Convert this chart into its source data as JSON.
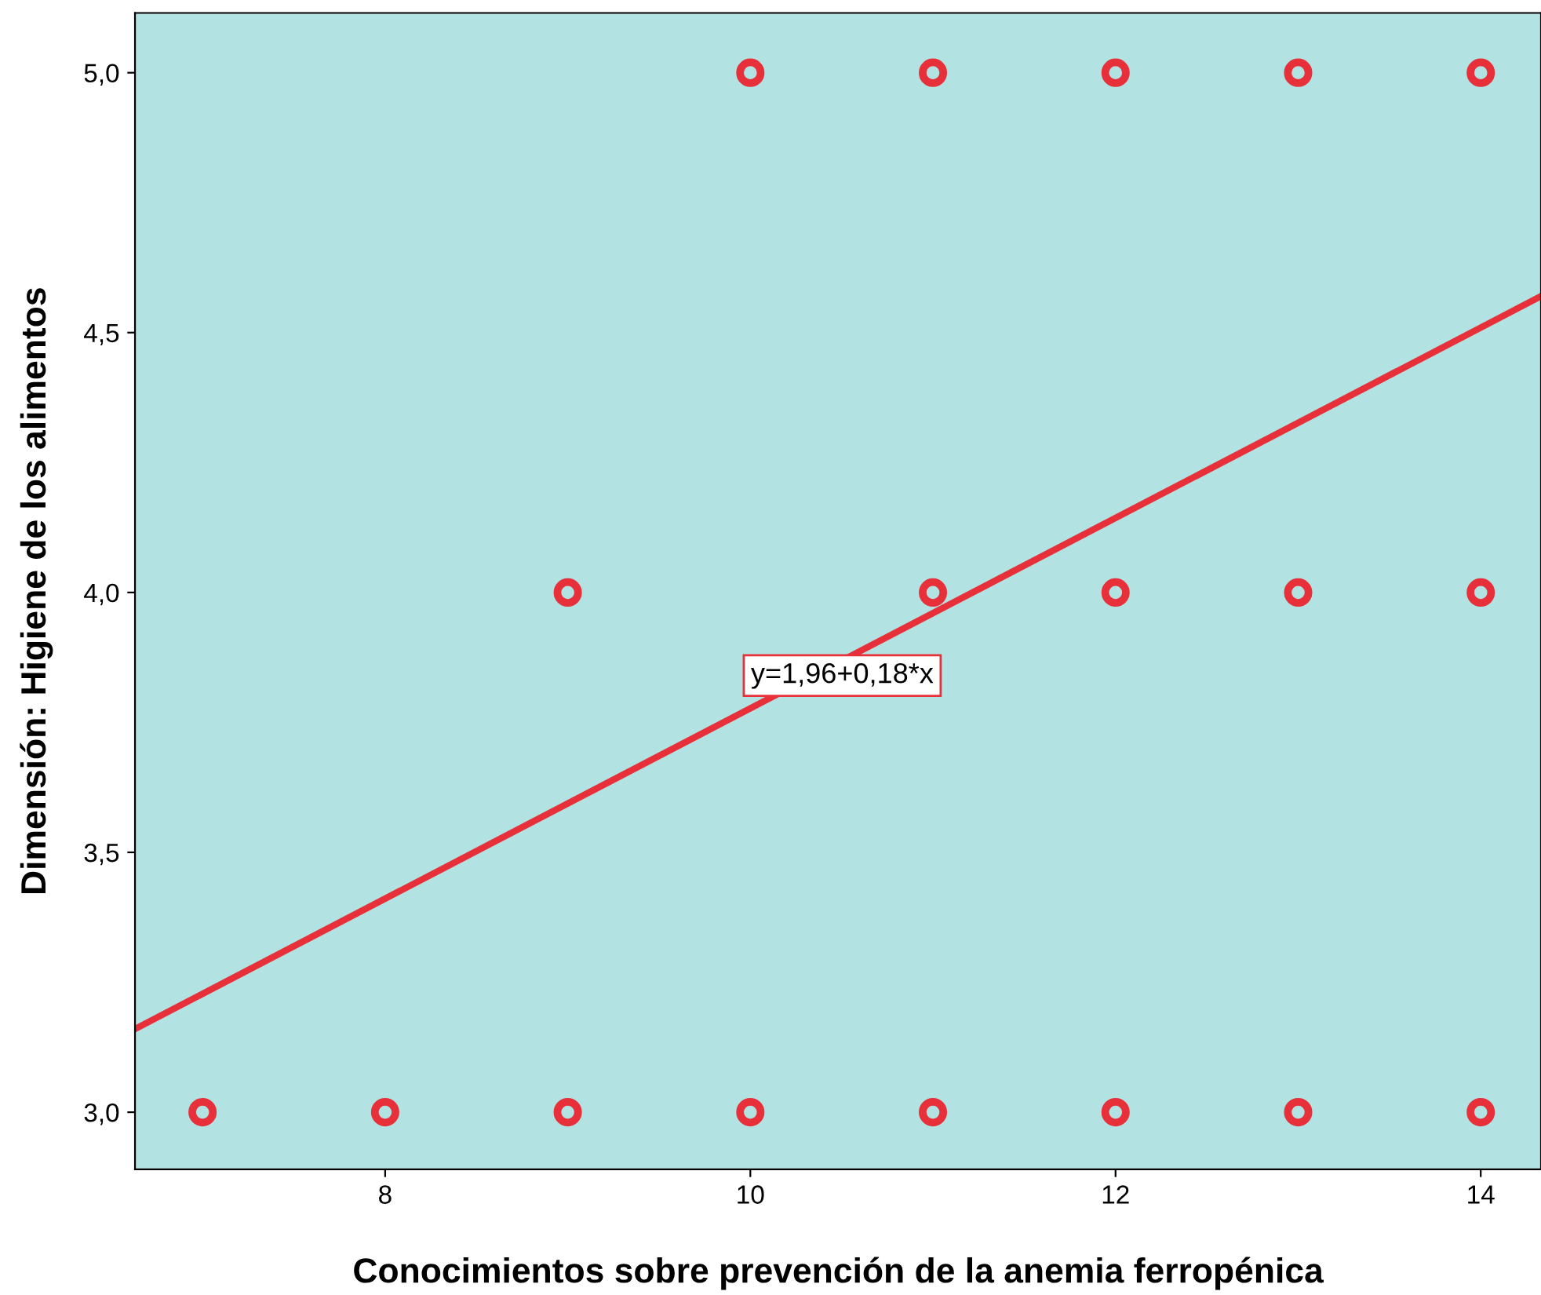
{
  "chart_data": {
    "type": "scatter",
    "xlabel": "Conocimientos sobre prevención de la anemia ferropénica",
    "ylabel": "Dimensión: Higiene de los alimentos",
    "xlim": [
      6.63,
      14.33
    ],
    "ylim": [
      2.89,
      5.115
    ],
    "xticks": [
      8,
      10,
      12,
      14
    ],
    "yticks": [
      {
        "value": 3,
        "label": "3,0"
      },
      {
        "value": 3.5,
        "label": "3,5"
      },
      {
        "value": 4,
        "label": "4,0"
      },
      {
        "value": 4.5,
        "label": "4,5"
      },
      {
        "value": 5,
        "label": "5,0"
      }
    ],
    "grid": false,
    "series": [
      {
        "marker": "circle",
        "color": "#e8303a",
        "x": [
          10,
          11,
          12,
          13,
          14,
          9,
          11,
          12,
          13,
          14,
          7,
          8,
          9,
          10,
          11,
          12,
          13,
          14
        ],
        "values": [
          5,
          5,
          5,
          5,
          5,
          4,
          4,
          4,
          4,
          4,
          3,
          3,
          3,
          3,
          3,
          3,
          3,
          3
        ]
      },
      {
        "type": "line",
        "marker": "none",
        "color": "#e8303a",
        "x": [
          6.63,
          14.33
        ],
        "values": [
          3.16,
          4.57
        ]
      }
    ],
    "annotations": [
      "y=1,96+0,18*x"
    ]
  }
}
